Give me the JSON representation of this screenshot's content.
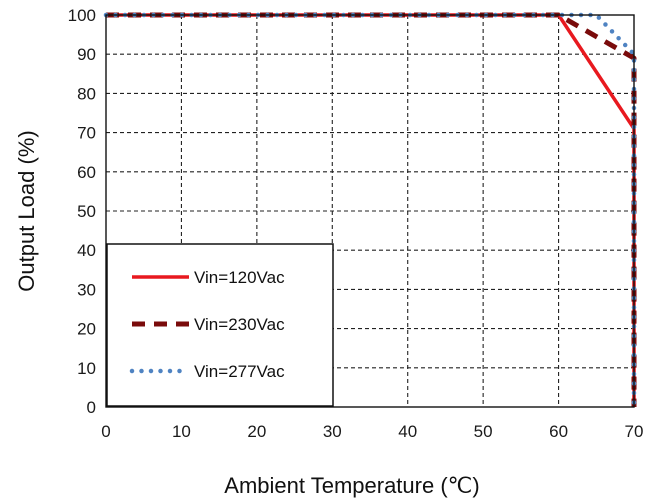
{
  "chart_data": {
    "type": "line",
    "title": "",
    "xlabel": "Ambient Temperature (℃)",
    "ylabel": "Output  Load (%)",
    "xlim": [
      0,
      70
    ],
    "ylim": [
      0,
      100
    ],
    "xticks": [
      0,
      10,
      20,
      30,
      40,
      50,
      60,
      70
    ],
    "yticks": [
      0,
      10,
      20,
      30,
      40,
      50,
      60,
      70,
      80,
      90,
      100
    ],
    "grid": true,
    "legend_position": "bottom-left",
    "series": [
      {
        "name": "Vin=120Vac",
        "color": "#e8191f",
        "style": "solid",
        "x": [
          0,
          60,
          70,
          70
        ],
        "y": [
          100,
          100,
          71,
          0
        ]
      },
      {
        "name": "Vin=230Vac",
        "color": "#7a0b0b",
        "style": "dashed",
        "x": [
          0,
          60,
          70,
          70
        ],
        "y": [
          100,
          100,
          89,
          0
        ]
      },
      {
        "name": "Vin=277Vac",
        "color": "#4f83c2",
        "style": "dotted",
        "x": [
          0,
          65,
          70,
          70
        ],
        "y": [
          100,
          100,
          90,
          0
        ]
      }
    ]
  }
}
